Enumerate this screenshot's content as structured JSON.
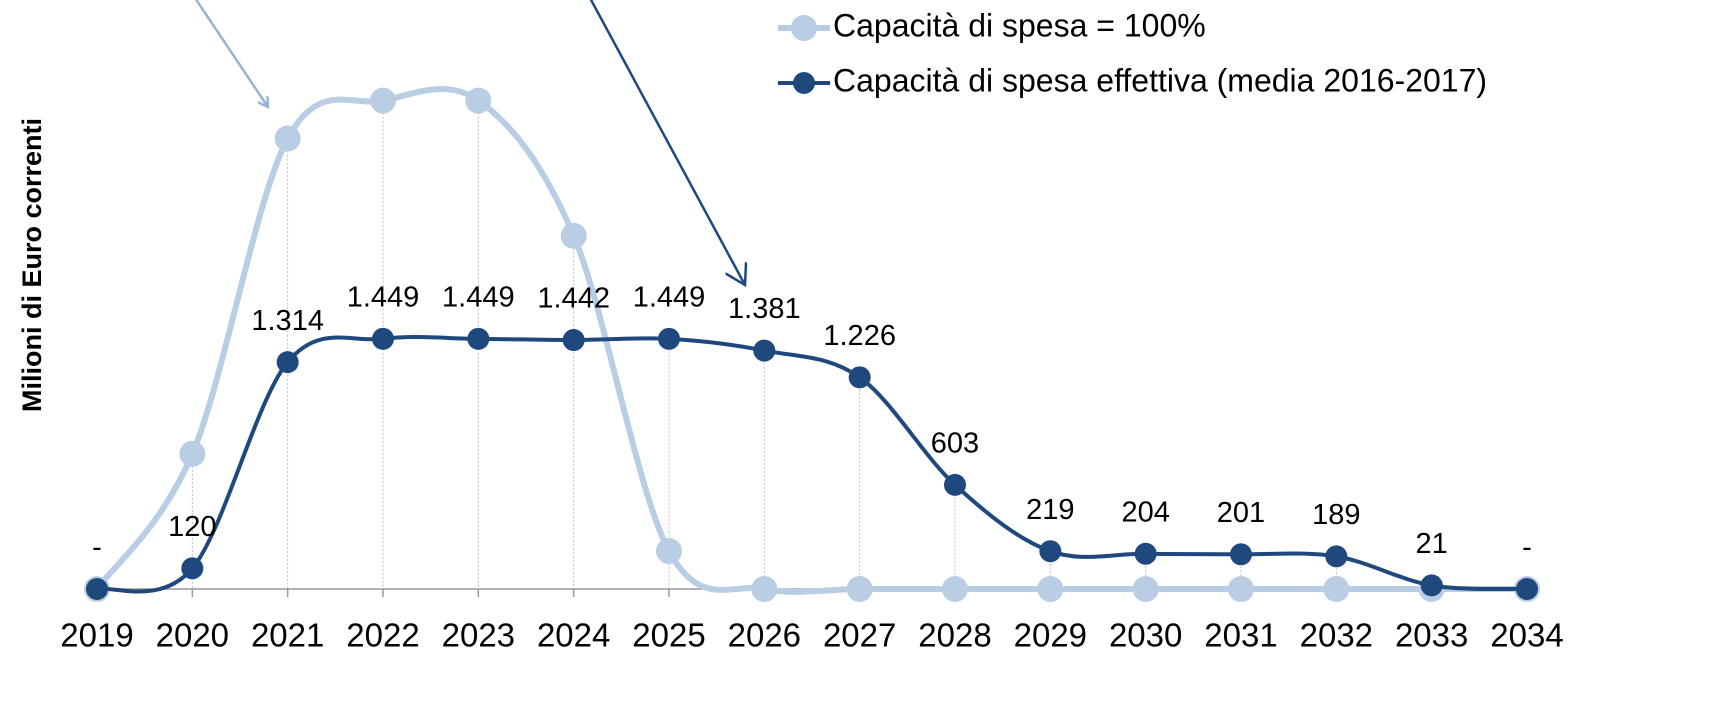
{
  "chart_data": {
    "type": "line",
    "y_label": "Milioni di Euro correnti",
    "categories": [
      "2019",
      "2020",
      "2021",
      "2022",
      "2023",
      "2024",
      "2025",
      "2026",
      "2027",
      "2028",
      "2029",
      "2030",
      "2031",
      "2032",
      "2033",
      "2034"
    ],
    "series": [
      {
        "name": "Capacità di spesa = 100%",
        "color": "#b9cde5",
        "values": [
          0,
          783,
          2609,
          2829,
          2829,
          2046,
          220,
          0,
          0,
          0,
          0,
          0,
          0,
          0,
          0,
          0
        ]
      },
      {
        "name": "Capacità di spesa effettiva (media 2016-2017)",
        "color": "#1f497d",
        "values": [
          0,
          120,
          1314,
          1449,
          1449,
          1442,
          1449,
          1381,
          1226,
          603,
          219,
          204,
          201,
          189,
          21,
          0
        ],
        "value_labels": [
          "-",
          "120",
          "1.314",
          "1.449",
          "1.449",
          "1.442",
          "1.449",
          "1.381",
          "1.226",
          "603",
          "219",
          "204",
          "201",
          "189",
          "21",
          "-"
        ]
      }
    ],
    "ylim": [
      0,
      3400
    ],
    "legend": "top-right"
  }
}
